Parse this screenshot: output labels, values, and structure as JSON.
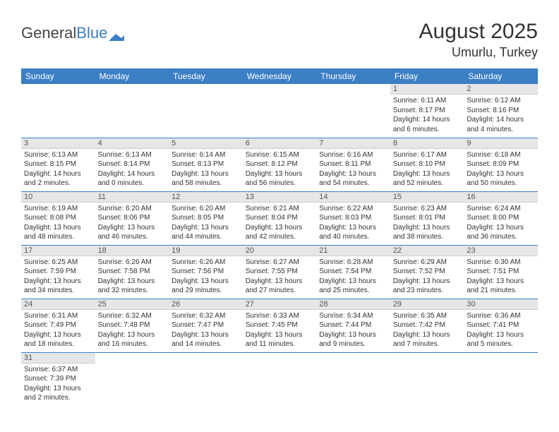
{
  "logo": {
    "part1": "General",
    "part2": "Blue"
  },
  "title": "August 2025",
  "location": "Umurlu, Turkey",
  "colors": {
    "header_bg": "#3b7fc4",
    "header_text": "#ffffff",
    "daynum_bg": "#e6e6e6",
    "row_border": "#3b7fc4",
    "text": "#333333"
  },
  "weekdays": [
    "Sunday",
    "Monday",
    "Tuesday",
    "Wednesday",
    "Thursday",
    "Friday",
    "Saturday"
  ],
  "weeks": [
    [
      null,
      null,
      null,
      null,
      null,
      {
        "n": "1",
        "sr": "6:11 AM",
        "ss": "8:17 PM",
        "dh": "14",
        "dm": "6"
      },
      {
        "n": "2",
        "sr": "6:12 AM",
        "ss": "8:16 PM",
        "dh": "14",
        "dm": "4"
      }
    ],
    [
      {
        "n": "3",
        "sr": "6:13 AM",
        "ss": "8:15 PM",
        "dh": "14",
        "dm": "2"
      },
      {
        "n": "4",
        "sr": "6:13 AM",
        "ss": "8:14 PM",
        "dh": "14",
        "dm": "0"
      },
      {
        "n": "5",
        "sr": "6:14 AM",
        "ss": "8:13 PM",
        "dh": "13",
        "dm": "58"
      },
      {
        "n": "6",
        "sr": "6:15 AM",
        "ss": "8:12 PM",
        "dh": "13",
        "dm": "56"
      },
      {
        "n": "7",
        "sr": "6:16 AM",
        "ss": "8:11 PM",
        "dh": "13",
        "dm": "54"
      },
      {
        "n": "8",
        "sr": "6:17 AM",
        "ss": "8:10 PM",
        "dh": "13",
        "dm": "52"
      },
      {
        "n": "9",
        "sr": "6:18 AM",
        "ss": "8:09 PM",
        "dh": "13",
        "dm": "50"
      }
    ],
    [
      {
        "n": "10",
        "sr": "6:19 AM",
        "ss": "8:08 PM",
        "dh": "13",
        "dm": "48"
      },
      {
        "n": "11",
        "sr": "6:20 AM",
        "ss": "8:06 PM",
        "dh": "13",
        "dm": "46"
      },
      {
        "n": "12",
        "sr": "6:20 AM",
        "ss": "8:05 PM",
        "dh": "13",
        "dm": "44"
      },
      {
        "n": "13",
        "sr": "6:21 AM",
        "ss": "8:04 PM",
        "dh": "13",
        "dm": "42"
      },
      {
        "n": "14",
        "sr": "6:22 AM",
        "ss": "8:03 PM",
        "dh": "13",
        "dm": "40"
      },
      {
        "n": "15",
        "sr": "6:23 AM",
        "ss": "8:01 PM",
        "dh": "13",
        "dm": "38"
      },
      {
        "n": "16",
        "sr": "6:24 AM",
        "ss": "8:00 PM",
        "dh": "13",
        "dm": "36"
      }
    ],
    [
      {
        "n": "17",
        "sr": "6:25 AM",
        "ss": "7:59 PM",
        "dh": "13",
        "dm": "34"
      },
      {
        "n": "18",
        "sr": "6:26 AM",
        "ss": "7:58 PM",
        "dh": "13",
        "dm": "32"
      },
      {
        "n": "19",
        "sr": "6:26 AM",
        "ss": "7:56 PM",
        "dh": "13",
        "dm": "29"
      },
      {
        "n": "20",
        "sr": "6:27 AM",
        "ss": "7:55 PM",
        "dh": "13",
        "dm": "27"
      },
      {
        "n": "21",
        "sr": "6:28 AM",
        "ss": "7:54 PM",
        "dh": "13",
        "dm": "25"
      },
      {
        "n": "22",
        "sr": "6:29 AM",
        "ss": "7:52 PM",
        "dh": "13",
        "dm": "23"
      },
      {
        "n": "23",
        "sr": "6:30 AM",
        "ss": "7:51 PM",
        "dh": "13",
        "dm": "21"
      }
    ],
    [
      {
        "n": "24",
        "sr": "6:31 AM",
        "ss": "7:49 PM",
        "dh": "13",
        "dm": "18"
      },
      {
        "n": "25",
        "sr": "6:32 AM",
        "ss": "7:48 PM",
        "dh": "13",
        "dm": "16"
      },
      {
        "n": "26",
        "sr": "6:32 AM",
        "ss": "7:47 PM",
        "dh": "13",
        "dm": "14"
      },
      {
        "n": "27",
        "sr": "6:33 AM",
        "ss": "7:45 PM",
        "dh": "13",
        "dm": "11"
      },
      {
        "n": "28",
        "sr": "6:34 AM",
        "ss": "7:44 PM",
        "dh": "13",
        "dm": "9"
      },
      {
        "n": "29",
        "sr": "6:35 AM",
        "ss": "7:42 PM",
        "dh": "13",
        "dm": "7"
      },
      {
        "n": "30",
        "sr": "6:36 AM",
        "ss": "7:41 PM",
        "dh": "13",
        "dm": "5"
      }
    ],
    [
      {
        "n": "31",
        "sr": "6:37 AM",
        "ss": "7:39 PM",
        "dh": "13",
        "dm": "2"
      },
      null,
      null,
      null,
      null,
      null,
      null
    ]
  ],
  "labels": {
    "sunrise": "Sunrise: ",
    "sunset": "Sunset: ",
    "daylight_prefix": "Daylight: ",
    "hours_word": " hours",
    "and_word": "and ",
    "minutes_word": " minutes."
  }
}
